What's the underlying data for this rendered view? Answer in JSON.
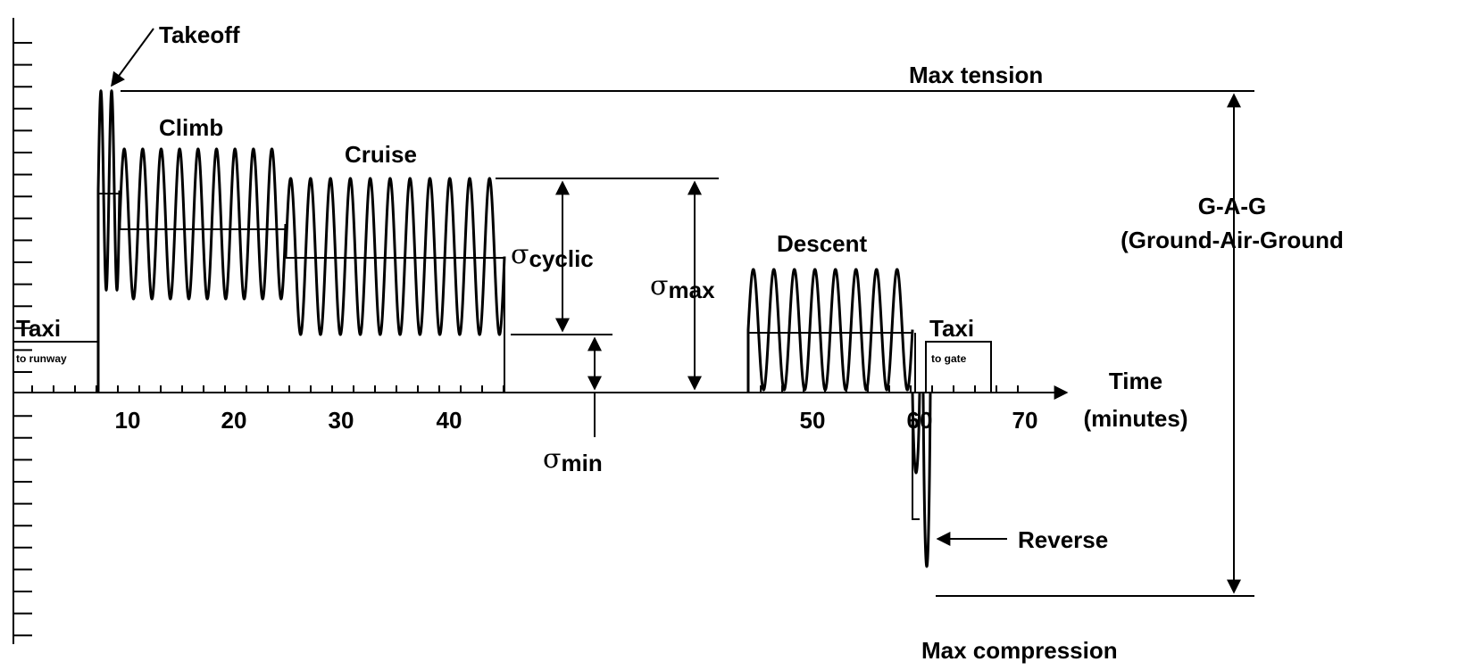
{
  "labels": {
    "takeoff": "Takeoff",
    "max_tension": "Max tension",
    "climb": "Climb",
    "cruise": "Cruise",
    "descent": "Descent",
    "taxi_start": "Taxi",
    "taxi_start_sub": "to runway",
    "taxi_end": "Taxi",
    "taxi_end_sub": "to gate",
    "sigma_cyclic": {
      "symbol": "σ",
      "subscript": "cyclic"
    },
    "sigma_max": {
      "symbol": "σ",
      "subscript": "max"
    },
    "sigma_min": {
      "symbol": "σ",
      "subscript": "min"
    },
    "gag_line1": "G-A-G",
    "gag_line2": "(Ground-Air-Ground",
    "time_line1": "Time",
    "time_line2": "(minutes)",
    "reverse": "Reverse",
    "max_compression": "Max compression"
  },
  "time_axis": {
    "tick_labels": [
      "10",
      "20",
      "30",
      "40",
      "50",
      "60",
      "70"
    ]
  }
}
